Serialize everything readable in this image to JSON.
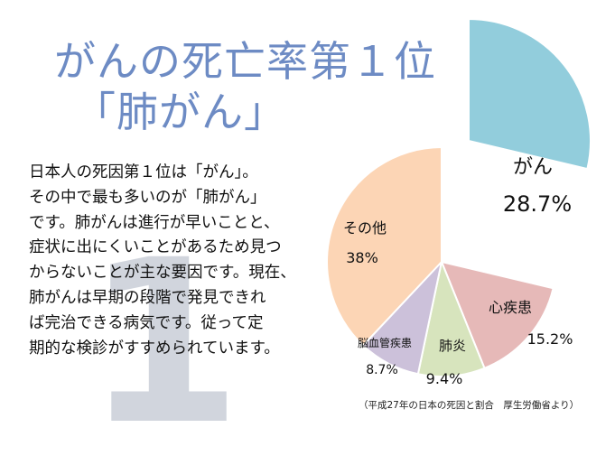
{
  "title": {
    "line1": "がんの死亡率第１位",
    "line2": "「肺がん」"
  },
  "decoration": {
    "big_number": "1"
  },
  "body_lines": [
    "日本人の死因第１位は「がん」。",
    "その中で最も多いのが「肺がん」",
    "です。肺がんは進行が早いことと、",
    "症状に出にくいことがあるため見つ",
    "からないことが主な要因です。現在、",
    "肺がんは早期の段階で発見できれ",
    "ば完治できる病気です。従って定",
    "期的な検診がすすめられています。"
  ],
  "source_note": "（平成27年の日本の死因と割合　厚生労働省より）",
  "chart_data": {
    "type": "pie",
    "unit": "%",
    "slices": [
      {
        "name": "がん",
        "value_label": "28.7%",
        "value": 28.7,
        "color": "#92cddc",
        "exploded": true
      },
      {
        "name": "心疾患",
        "value_label": "15.2%",
        "value": 15.2,
        "color": "#e6b9b8",
        "exploded": false
      },
      {
        "name": "肺炎",
        "value_label": "9.4%",
        "value": 9.4,
        "color": "#d7e4bd",
        "exploded": false
      },
      {
        "name": "脳血管疾患",
        "value_label": "8.7%",
        "value": 8.7,
        "color": "#ccc1da",
        "exploded": false
      },
      {
        "name": "その他",
        "value_label": "38%",
        "value": 38,
        "color": "#fcd5b5",
        "exploded": false
      }
    ]
  }
}
